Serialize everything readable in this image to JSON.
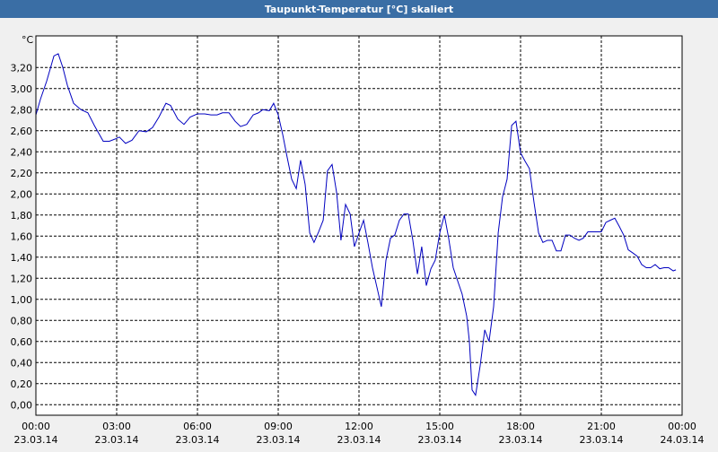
{
  "chart_data": {
    "type": "line",
    "title": "Taupunkt-Temperatur [°C] skaliert",
    "ylabel": "°C",
    "grid": true,
    "xlim": [
      0,
      24
    ],
    "xticks": [
      {
        "value": 0,
        "label": "00:00"
      },
      {
        "value": 3,
        "label": "03:00"
      },
      {
        "value": 6,
        "label": "06:00"
      },
      {
        "value": 9,
        "label": "09:00"
      },
      {
        "value": 12,
        "label": "12:00"
      },
      {
        "value": 15,
        "label": "15:00"
      },
      {
        "value": 18,
        "label": "18:00"
      },
      {
        "value": 21,
        "label": "21:00"
      },
      {
        "value": 24,
        "label": "00:00"
      }
    ],
    "xtick_dates": [
      "23.03.14",
      "23.03.14",
      "23.03.14",
      "23.03.14",
      "23.03.14",
      "23.03.14",
      "23.03.14",
      "23.03.14",
      "24.03.14"
    ],
    "ylim": [
      -0.1,
      3.5
    ],
    "yticks": [
      {
        "value": 0,
        "label": "0,00"
      },
      {
        "value": 0.2,
        "label": "0,20"
      },
      {
        "value": 0.4,
        "label": "0,40"
      },
      {
        "value": 0.6,
        "label": "0,60"
      },
      {
        "value": 0.8,
        "label": "0,80"
      },
      {
        "value": 1.0,
        "label": "1,00"
      },
      {
        "value": 1.2,
        "label": "1,20"
      },
      {
        "value": 1.4,
        "label": "1,40"
      },
      {
        "value": 1.6,
        "label": "1,60"
      },
      {
        "value": 1.8,
        "label": "1,80"
      },
      {
        "value": 2.0,
        "label": "2,00"
      },
      {
        "value": 2.2,
        "label": "2,20"
      },
      {
        "value": 2.4,
        "label": "2,40"
      },
      {
        "value": 2.6,
        "label": "2,60"
      },
      {
        "value": 2.8,
        "label": "2,80"
      },
      {
        "value": 3.0,
        "label": "3,00"
      },
      {
        "value": 3.2,
        "label": "3,20"
      }
    ],
    "x": [
      0,
      0.17,
      0.4,
      0.67,
      0.83,
      1.0,
      1.17,
      1.4,
      1.67,
      1.93,
      2.17,
      2.5,
      2.73,
      2.93,
      3.1,
      3.33,
      3.57,
      3.83,
      4.1,
      4.33,
      4.57,
      4.83,
      5.0,
      5.27,
      5.5,
      5.73,
      6.0,
      6.27,
      6.5,
      6.73,
      6.93,
      7.17,
      7.4,
      7.6,
      7.83,
      8.07,
      8.27,
      8.43,
      8.67,
      8.83,
      9.0,
      9.17,
      9.33,
      9.5,
      9.67,
      9.83,
      10.0,
      10.17,
      10.33,
      10.5,
      10.67,
      10.83,
      11.0,
      11.17,
      11.33,
      11.5,
      11.67,
      11.83,
      12.0,
      12.17,
      12.33,
      12.5,
      12.67,
      12.83,
      13.0,
      13.17,
      13.33,
      13.5,
      13.67,
      13.83,
      14.0,
      14.17,
      14.33,
      14.5,
      14.67,
      14.83,
      15.0,
      15.17,
      15.33,
      15.5,
      15.67,
      15.83,
      16.0,
      16.1,
      16.2,
      16.33,
      16.5,
      16.67,
      16.83,
      17.0,
      17.17,
      17.33,
      17.5,
      17.67,
      17.83,
      18.0,
      18.17,
      18.33,
      18.5,
      18.67,
      18.83,
      19.0,
      19.17,
      19.33,
      19.5,
      19.67,
      19.83,
      20.0,
      20.17,
      20.33,
      20.5,
      20.67,
      20.83,
      21.0,
      21.17,
      21.33,
      21.5,
      21.67,
      21.83,
      22.0,
      22.17,
      22.33,
      22.5,
      22.67,
      22.83,
      23.0,
      23.17,
      23.33,
      23.5,
      23.67,
      23.77
    ],
    "series": [
      {
        "name": "Taupunkt-Temperatur",
        "color": "#0000c0",
        "values": [
          2.75,
          2.9,
          3.07,
          3.31,
          3.33,
          3.2,
          3.03,
          2.86,
          2.8,
          2.77,
          2.65,
          2.5,
          2.5,
          2.52,
          2.54,
          2.48,
          2.51,
          2.6,
          2.59,
          2.63,
          2.73,
          2.86,
          2.84,
          2.71,
          2.66,
          2.73,
          2.76,
          2.76,
          2.75,
          2.75,
          2.77,
          2.77,
          2.69,
          2.64,
          2.66,
          2.75,
          2.77,
          2.8,
          2.79,
          2.86,
          2.75,
          2.56,
          2.35,
          2.14,
          2.05,
          2.32,
          2.09,
          1.63,
          1.54,
          1.64,
          1.75,
          2.22,
          2.28,
          2.01,
          1.56,
          1.9,
          1.81,
          1.5,
          1.63,
          1.75,
          1.54,
          1.3,
          1.11,
          0.93,
          1.37,
          1.58,
          1.61,
          1.75,
          1.81,
          1.81,
          1.56,
          1.24,
          1.5,
          1.13,
          1.29,
          1.37,
          1.63,
          1.8,
          1.58,
          1.3,
          1.17,
          1.05,
          0.84,
          0.6,
          0.14,
          0.09,
          0.37,
          0.71,
          0.6,
          0.93,
          1.63,
          1.97,
          2.14,
          2.65,
          2.69,
          2.39,
          2.31,
          2.24,
          1.92,
          1.63,
          1.54,
          1.56,
          1.56,
          1.46,
          1.46,
          1.61,
          1.61,
          1.58,
          1.56,
          1.58,
          1.64,
          1.64,
          1.64,
          1.64,
          1.73,
          1.75,
          1.77,
          1.69,
          1.61,
          1.47,
          1.44,
          1.41,
          1.33,
          1.3,
          1.3,
          1.33,
          1.29,
          1.3,
          1.3,
          1.27,
          1.28
        ]
      }
    ]
  }
}
